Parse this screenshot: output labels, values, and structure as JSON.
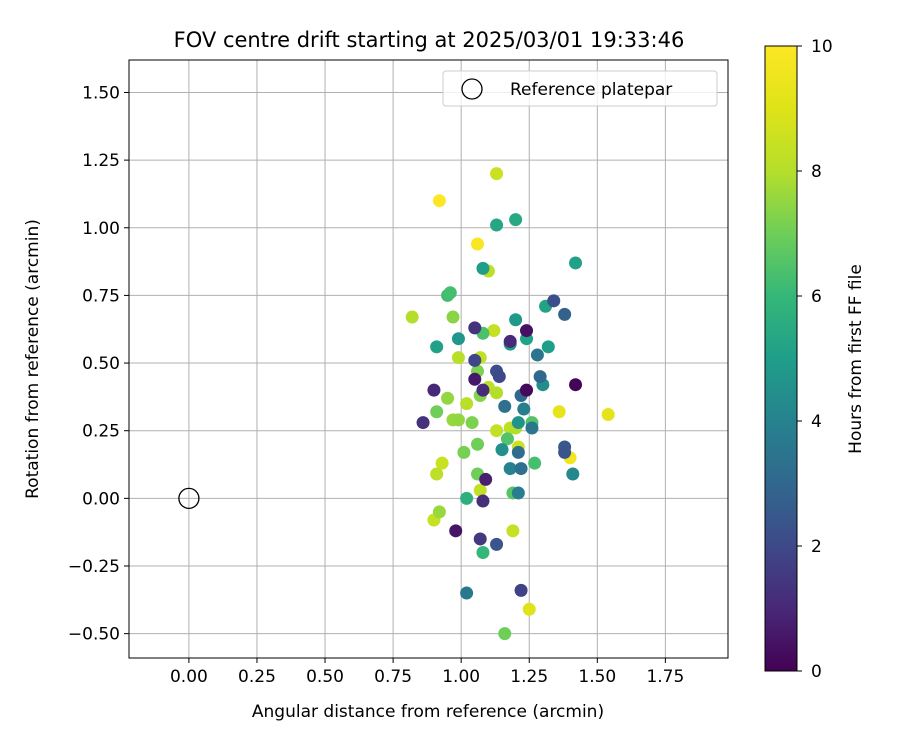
{
  "chart_data": {
    "type": "scatter",
    "title": "FOV centre drift starting at 2025/03/01 19:33:46",
    "xlabel": "Angular distance from reference (arcmin)",
    "ylabel": "Rotation from reference (arcmin)",
    "xlim": [
      -0.22,
      1.98
    ],
    "ylim": [
      -0.59,
      1.62
    ],
    "xticks": [
      "0.00",
      "0.25",
      "0.50",
      "0.75",
      "1.00",
      "1.25",
      "1.50",
      "1.75"
    ],
    "xtick_values": [
      0,
      0.25,
      0.5,
      0.75,
      1.0,
      1.25,
      1.5,
      1.75
    ],
    "yticks": [
      "−0.50",
      "−0.25",
      "0.00",
      "0.25",
      "0.50",
      "0.75",
      "1.00",
      "1.25",
      "1.50"
    ],
    "ytick_values": [
      -0.5,
      -0.25,
      0,
      0.25,
      0.5,
      0.75,
      1.0,
      1.25,
      1.5
    ],
    "grid": true,
    "legend": {
      "position": "upper right",
      "label": "Reference platepar",
      "marker": "open-circle"
    },
    "reference_point": {
      "x": 0.0,
      "y": 0.0
    },
    "colorbar": {
      "label": "Hours from first FF file",
      "range": [
        0,
        10
      ],
      "ticks": [
        "0",
        "2",
        "4",
        "6",
        "8",
        "10"
      ],
      "tick_values": [
        0,
        2,
        4,
        6,
        8,
        10
      ],
      "colormap": "viridis"
    },
    "points": [
      {
        "x": 0.92,
        "y": 1.1,
        "h": 10.0
      },
      {
        "x": 1.06,
        "y": 0.94,
        "h": 9.9
      },
      {
        "x": 1.4,
        "y": 0.15,
        "h": 9.6
      },
      {
        "x": 1.54,
        "y": 0.31,
        "h": 9.2
      },
      {
        "x": 1.36,
        "y": 0.32,
        "h": 9.3
      },
      {
        "x": 1.25,
        "y": -0.41,
        "h": 9.0
      },
      {
        "x": 1.13,
        "y": 1.2,
        "h": 8.5
      },
      {
        "x": 1.1,
        "y": 0.84,
        "h": 8.2
      },
      {
        "x": 0.82,
        "y": 0.67,
        "h": 8.0
      },
      {
        "x": 1.12,
        "y": 0.62,
        "h": 8.4
      },
      {
        "x": 1.07,
        "y": 0.52,
        "h": 8.3
      },
      {
        "x": 0.99,
        "y": 0.52,
        "h": 8.1
      },
      {
        "x": 1.1,
        "y": 0.41,
        "h": 8.2
      },
      {
        "x": 1.13,
        "y": 0.39,
        "h": 8.0
      },
      {
        "x": 1.02,
        "y": 0.35,
        "h": 8.1
      },
      {
        "x": 1.13,
        "y": 0.25,
        "h": 8.3
      },
      {
        "x": 1.18,
        "y": 0.26,
        "h": 8.2
      },
      {
        "x": 1.2,
        "y": 0.26,
        "h": 8.0
      },
      {
        "x": 1.21,
        "y": 0.19,
        "h": 8.6
      },
      {
        "x": 0.93,
        "y": 0.13,
        "h": 8.5
      },
      {
        "x": 1.19,
        "y": -0.12,
        "h": 8.4
      },
      {
        "x": 1.07,
        "y": 0.03,
        "h": 8.3
      },
      {
        "x": 0.9,
        "y": -0.08,
        "h": 8.4
      },
      {
        "x": 0.91,
        "y": 0.09,
        "h": 8.2
      },
      {
        "x": 0.92,
        "y": -0.05,
        "h": 7.6
      },
      {
        "x": 0.97,
        "y": 0.67,
        "h": 7.4
      },
      {
        "x": 0.95,
        "y": 0.37,
        "h": 7.5
      },
      {
        "x": 0.97,
        "y": 0.29,
        "h": 7.6
      },
      {
        "x": 0.99,
        "y": 0.29,
        "h": 7.5
      },
      {
        "x": 1.04,
        "y": 0.28,
        "h": 7.2
      },
      {
        "x": 0.91,
        "y": 0.32,
        "h": 7.0
      },
      {
        "x": 1.06,
        "y": 0.2,
        "h": 7.0
      },
      {
        "x": 1.01,
        "y": 0.17,
        "h": 7.1
      },
      {
        "x": 1.06,
        "y": 0.09,
        "h": 7.0
      },
      {
        "x": 1.07,
        "y": 0.38,
        "h": 7.3
      },
      {
        "x": 1.06,
        "y": 0.47,
        "h": 7.2
      },
      {
        "x": 1.16,
        "y": -0.5,
        "h": 7.0
      },
      {
        "x": 1.17,
        "y": 0.22,
        "h": 6.5
      },
      {
        "x": 1.08,
        "y": 0.61,
        "h": 6.4
      },
      {
        "x": 0.95,
        "y": 0.75,
        "h": 6.2
      },
      {
        "x": 0.96,
        "y": 0.76,
        "h": 6.3
      },
      {
        "x": 1.19,
        "y": 0.02,
        "h": 6.6
      },
      {
        "x": 1.27,
        "y": 0.13,
        "h": 6.3
      },
      {
        "x": 1.26,
        "y": 0.28,
        "h": 6.5
      },
      {
        "x": 1.08,
        "y": -0.2,
        "h": 6.0
      },
      {
        "x": 1.02,
        "y": 0.0,
        "h": 5.7
      },
      {
        "x": 1.13,
        "y": 1.01,
        "h": 5.3
      },
      {
        "x": 1.2,
        "y": 1.03,
        "h": 5.4
      },
      {
        "x": 1.42,
        "y": 0.87,
        "h": 5.1
      },
      {
        "x": 1.31,
        "y": 0.71,
        "h": 5.2
      },
      {
        "x": 1.08,
        "y": 0.85,
        "h": 5.0
      },
      {
        "x": 0.91,
        "y": 0.56,
        "h": 5.1
      },
      {
        "x": 1.24,
        "y": 0.59,
        "h": 5.2
      },
      {
        "x": 1.32,
        "y": 0.56,
        "h": 5.0
      },
      {
        "x": 1.18,
        "y": 0.57,
        "h": 4.9
      },
      {
        "x": 1.2,
        "y": 0.66,
        "h": 4.8
      },
      {
        "x": 0.99,
        "y": 0.59,
        "h": 4.7
      },
      {
        "x": 1.15,
        "y": 0.18,
        "h": 4.5
      },
      {
        "x": 1.3,
        "y": 0.42,
        "h": 4.4
      },
      {
        "x": 1.21,
        "y": 0.28,
        "h": 4.6
      },
      {
        "x": 1.18,
        "y": 0.11,
        "h": 4.0
      },
      {
        "x": 1.41,
        "y": 0.09,
        "h": 4.2
      },
      {
        "x": 1.23,
        "y": 0.33,
        "h": 3.9
      },
      {
        "x": 1.21,
        "y": 0.02,
        "h": 3.8
      },
      {
        "x": 1.28,
        "y": 0.53,
        "h": 3.5
      },
      {
        "x": 1.26,
        "y": 0.26,
        "h": 3.5
      },
      {
        "x": 1.02,
        "y": -0.35,
        "h": 3.6
      },
      {
        "x": 1.22,
        "y": 0.11,
        "h": 3.3
      },
      {
        "x": 1.16,
        "y": 0.34,
        "h": 3.3
      },
      {
        "x": 1.21,
        "y": 0.17,
        "h": 3.2
      },
      {
        "x": 1.29,
        "y": 0.45,
        "h": 3.0
      },
      {
        "x": 1.22,
        "y": 0.38,
        "h": 3.0
      },
      {
        "x": 1.38,
        "y": 0.68,
        "h": 2.8
      },
      {
        "x": 1.38,
        "y": 0.19,
        "h": 2.5
      },
      {
        "x": 1.38,
        "y": 0.17,
        "h": 2.4
      },
      {
        "x": 1.13,
        "y": -0.17,
        "h": 2.4
      },
      {
        "x": 1.34,
        "y": 0.73,
        "h": 2.2
      },
      {
        "x": 1.13,
        "y": 0.47,
        "h": 2.1
      },
      {
        "x": 1.14,
        "y": 0.45,
        "h": 2.0
      },
      {
        "x": 1.05,
        "y": 0.51,
        "h": 1.9
      },
      {
        "x": 1.22,
        "y": -0.34,
        "h": 1.8
      },
      {
        "x": 1.07,
        "y": -0.15,
        "h": 1.5
      },
      {
        "x": 0.86,
        "y": 0.28,
        "h": 1.3
      },
      {
        "x": 1.05,
        "y": 0.63,
        "h": 1.3
      },
      {
        "x": 1.08,
        "y": 0.4,
        "h": 1.1
      },
      {
        "x": 1.08,
        "y": -0.01,
        "h": 1.2
      },
      {
        "x": 1.18,
        "y": 0.58,
        "h": 1.0
      },
      {
        "x": 0.9,
        "y": 0.4,
        "h": 1.0
      },
      {
        "x": 1.05,
        "y": 0.44,
        "h": 0.6
      },
      {
        "x": 1.09,
        "y": 0.07,
        "h": 0.8
      },
      {
        "x": 1.24,
        "y": 0.62,
        "h": 0.4
      },
      {
        "x": 1.24,
        "y": 0.4,
        "h": 0.2
      },
      {
        "x": 1.42,
        "y": 0.42,
        "h": 0.1
      },
      {
        "x": 0.98,
        "y": -0.12,
        "h": 0.5
      }
    ]
  }
}
